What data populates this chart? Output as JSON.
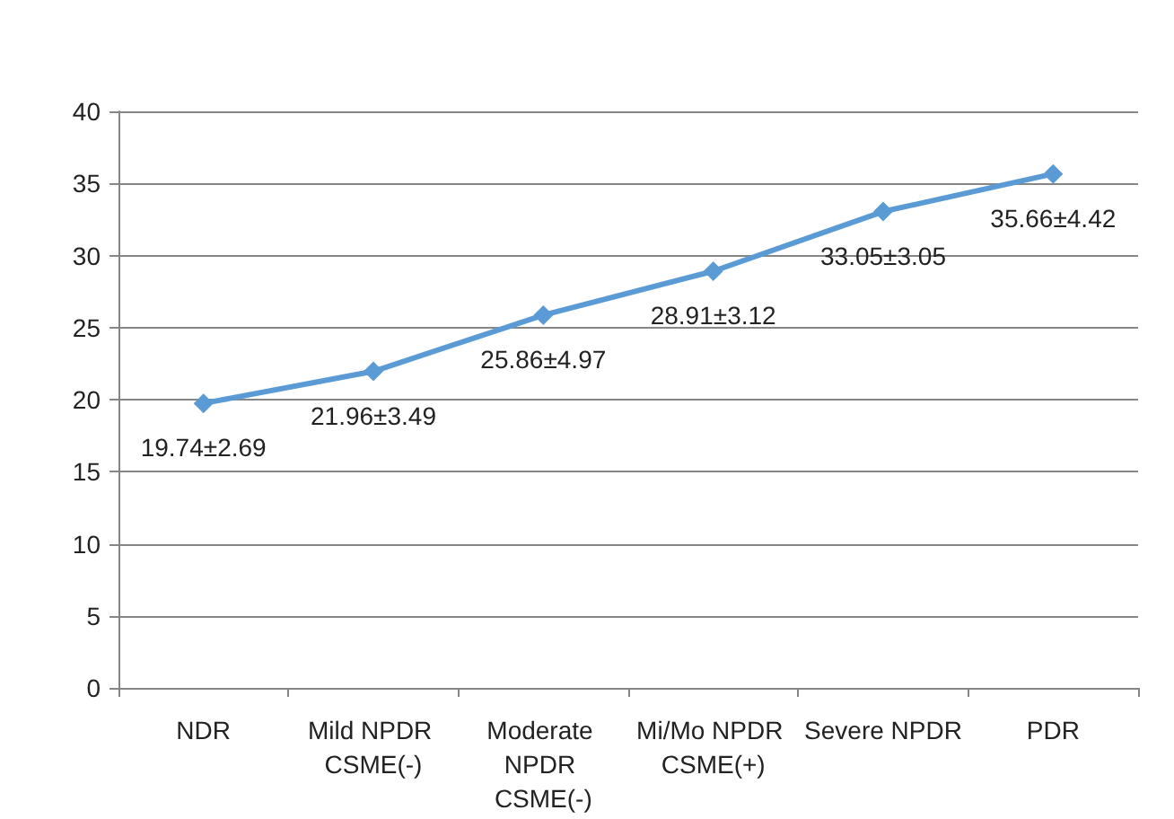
{
  "chart_data": {
    "type": "line",
    "categories": [
      "NDR",
      "Mild NPDR CSME(-)",
      "Moderate NPDR CSME(-)",
      "Mi/Mo NPDR CSME(+)",
      "Severe NPDR",
      "PDR"
    ],
    "series": [
      {
        "color": "#5b9bd5",
        "values": [
          19.74,
          21.96,
          25.86,
          28.91,
          33.05,
          35.66
        ],
        "value_labels": [
          "19.74±2.69",
          "21.96±3.49",
          "25.86±4.97",
          "28.91±3.12",
          "33.05±3.05",
          "35.66±4.42"
        ]
      }
    ],
    "ylim": [
      0,
      40
    ],
    "yticks": [
      0,
      5,
      10,
      15,
      20,
      25,
      30,
      35,
      40
    ],
    "grid": "y",
    "marker": "diamond",
    "line_style": "solid"
  }
}
